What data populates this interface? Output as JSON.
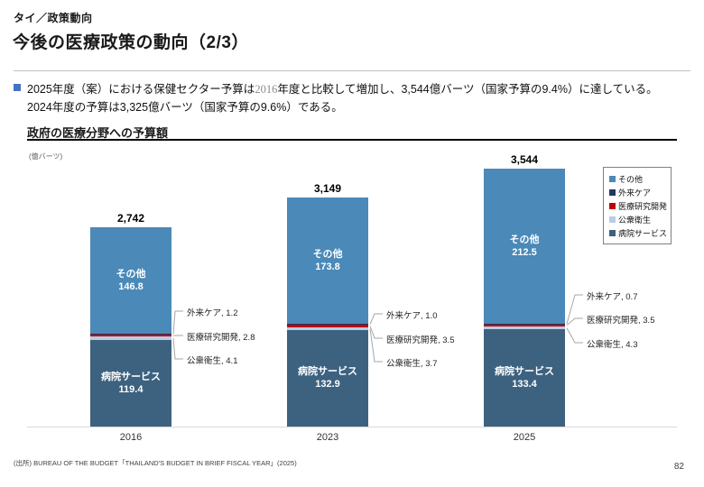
{
  "header": {
    "kicker": "タイ／政策動向",
    "title": "今後の医療政策の動向（2/3）"
  },
  "bullet": {
    "line1_pre": "2025年度（案）における保健セクター予算は",
    "line1_year": "2016",
    "line1_post": "年度と比較して増加し、3,544億バーツ（国家予算の9.4%）に達している。",
    "line2": "2024年度の予算は3,325億バーツ（国家予算の9.6%）である。"
  },
  "chart_data": {
    "type": "bar",
    "stacked": true,
    "title": "政府の医療分野への予算額",
    "unit_label": "(億バーツ)",
    "categories": [
      "2016",
      "2023",
      "2025"
    ],
    "totals": [
      "2,742",
      "3,149",
      "3,544"
    ],
    "series": [
      {
        "key": "hospital-services",
        "name": "病院サービス",
        "color": "#3d6280",
        "values": [
          "119.4",
          "132.9",
          "133.4"
        ],
        "label_in_bar": true
      },
      {
        "key": "public-health",
        "name": "公衆衛生",
        "color": "#b8cce4",
        "values": [
          "4.1",
          "3.7",
          "4.3"
        ],
        "label_in_bar": false
      },
      {
        "key": "medical-rnd",
        "name": "医療研究開発",
        "color": "#c00000",
        "values": [
          "2.8",
          "3.5",
          "3.5"
        ],
        "label_in_bar": false
      },
      {
        "key": "outpatient-care",
        "name": "外来ケア",
        "color": "#203864",
        "values": [
          "1.2",
          "1.0",
          "0.7"
        ],
        "label_in_bar": false
      },
      {
        "key": "others",
        "name": "その他",
        "color": "#4a89b8",
        "values": [
          "146.8",
          "173.8",
          "212.5"
        ],
        "label_in_bar": true
      }
    ],
    "legend_position": "top-right",
    "gridlines": false,
    "y_axis_visible": false
  },
  "footer": {
    "source": "(出所) BUREAU OF THE BUDGET「THAILAND'S BUDGET IN BRIEF FISCAL YEAR」(2025)",
    "page": "82"
  }
}
